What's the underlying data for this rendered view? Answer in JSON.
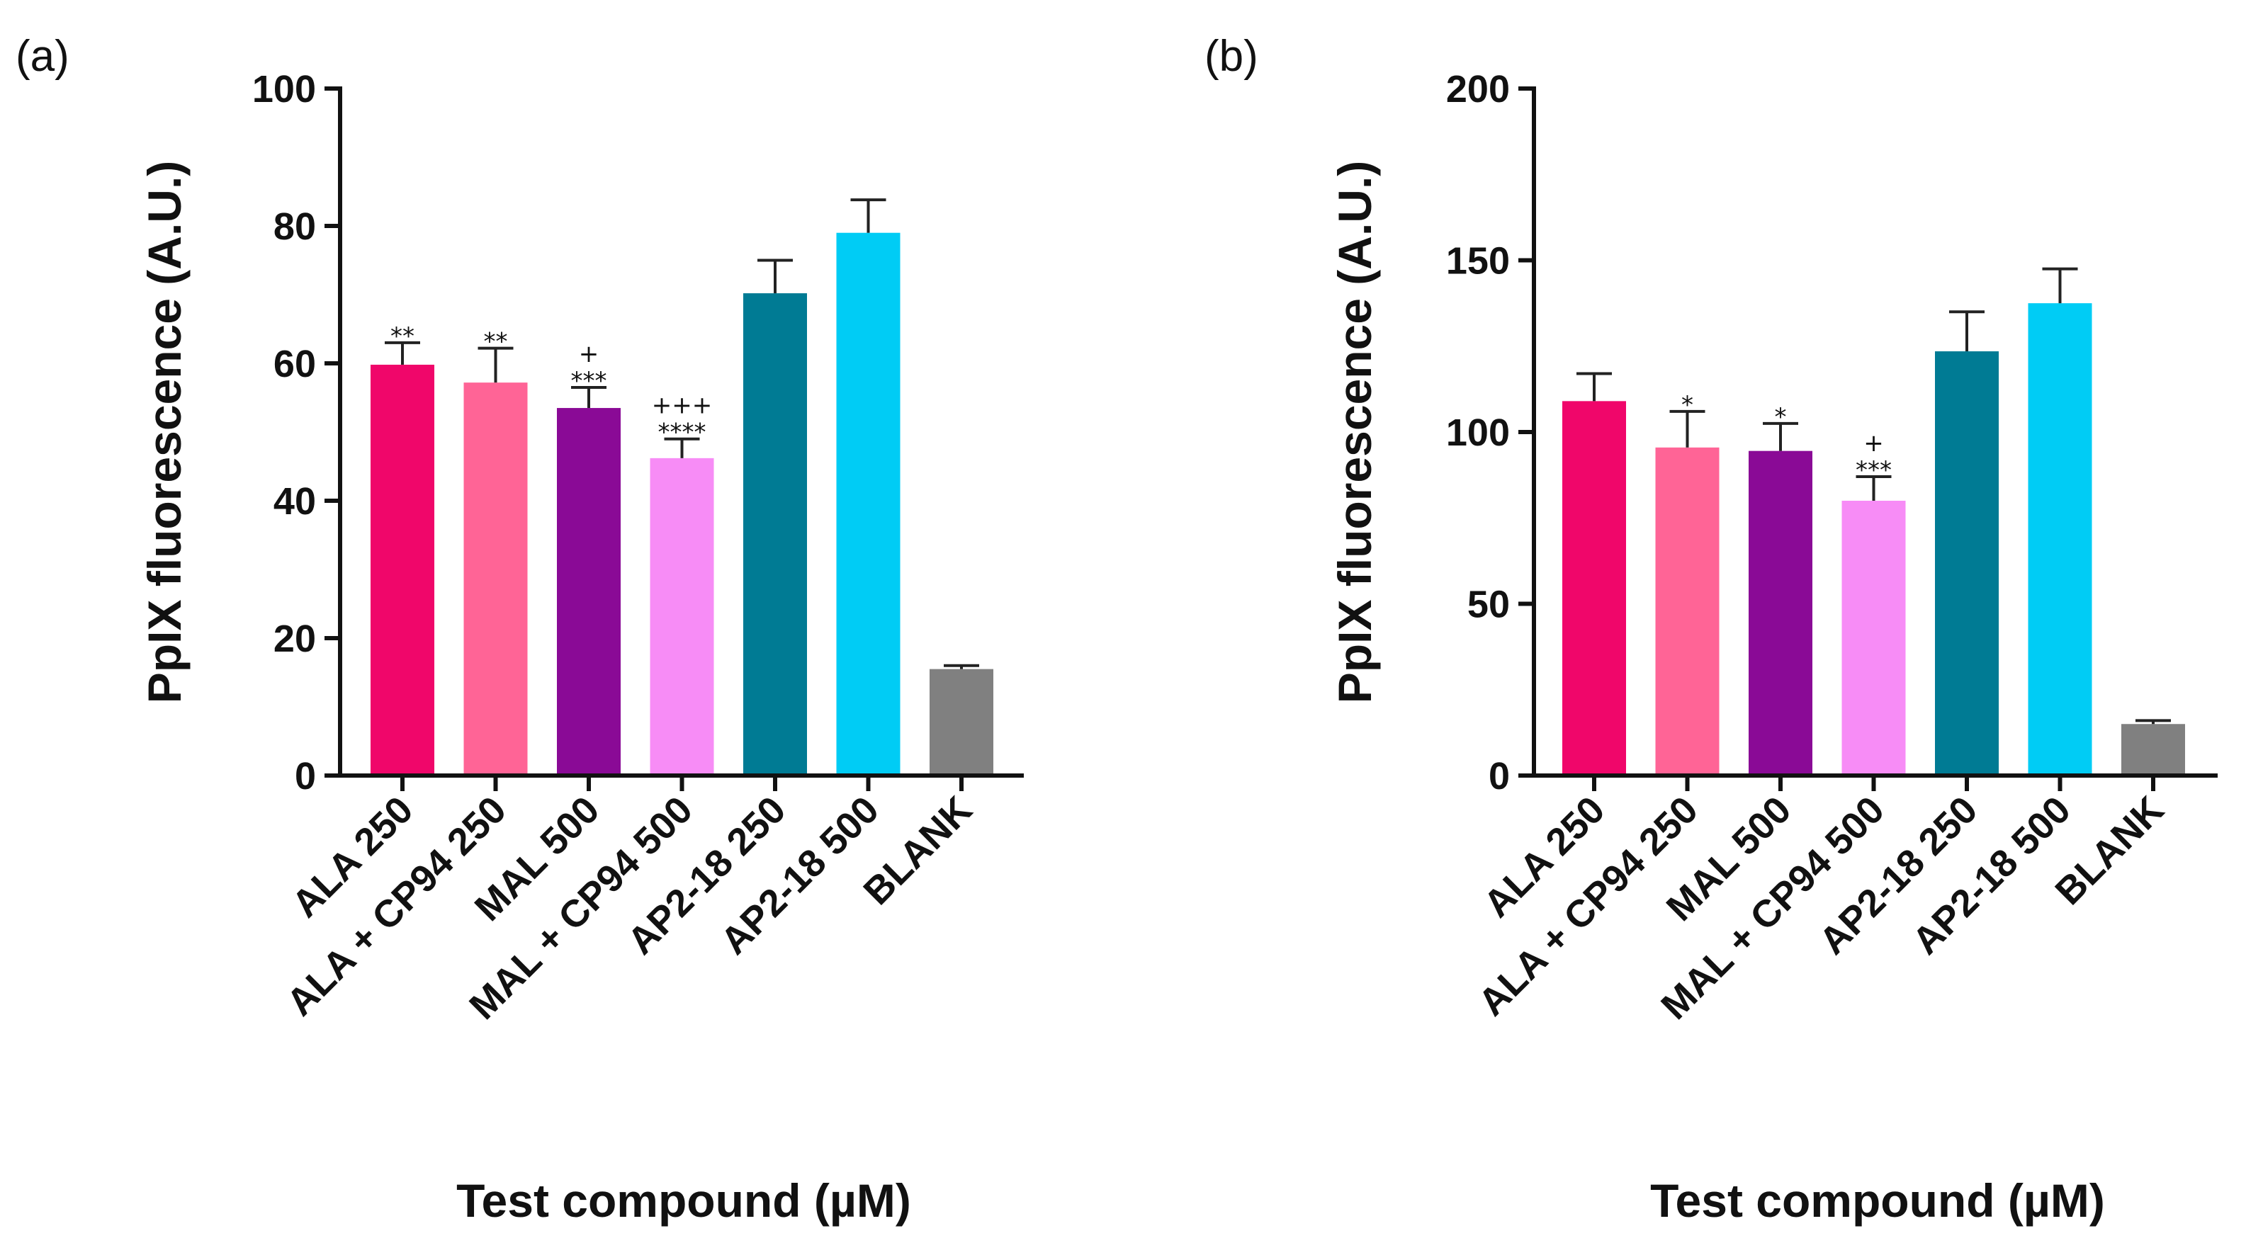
{
  "chart_data": [
    {
      "type": "bar",
      "panel_label": "(a)",
      "ylabel": "PpIX fluorescence (A.U.)",
      "xlabel": "Test compound (µM)",
      "ylim": [
        0,
        100
      ],
      "yticks": [
        0,
        20,
        40,
        60,
        80,
        100
      ],
      "categories": [
        "ALA 250",
        "ALA + CP94 250",
        "MAL 500",
        "MAL + CP94 500",
        "AP2-18 250",
        "AP2-18 500",
        "BLANK"
      ],
      "values": [
        59.8,
        57.2,
        53.5,
        46.2,
        70.2,
        79.0,
        15.5
      ],
      "errors": [
        3.2,
        5.0,
        3.0,
        2.8,
        4.8,
        4.8,
        0.5
      ],
      "colors": [
        "#F0066A",
        "#FF6496",
        "#8A0A96",
        "#F78CF6",
        "#007B94",
        "#00CCF5",
        "#808080"
      ],
      "significance": [
        [
          "**"
        ],
        [
          "**"
        ],
        [
          "+",
          "***"
        ],
        [
          "+++",
          "****"
        ],
        [],
        [],
        []
      ]
    },
    {
      "type": "bar",
      "panel_label": "(b)",
      "ylabel": "PpIX fluorescence (A.U.)",
      "xlabel": "Test compound (µM)",
      "ylim": [
        0,
        200
      ],
      "yticks": [
        0,
        50,
        100,
        150,
        200
      ],
      "categories": [
        "ALA 250",
        "ALA + CP94 250",
        "MAL 500",
        "MAL + CP94 500",
        "AP2-18 250",
        "AP2-18 500",
        "BLANK"
      ],
      "values": [
        109,
        95.5,
        94.5,
        80,
        123.5,
        137.5,
        15
      ],
      "errors": [
        8,
        10.5,
        8,
        7,
        11.5,
        10,
        1
      ],
      "colors": [
        "#F0066A",
        "#FF6496",
        "#8A0A96",
        "#F78CF6",
        "#007B94",
        "#00CCF5",
        "#808080"
      ],
      "significance": [
        [],
        [
          "*"
        ],
        [
          "*"
        ],
        [
          "+",
          "***"
        ],
        [],
        [],
        []
      ]
    }
  ]
}
